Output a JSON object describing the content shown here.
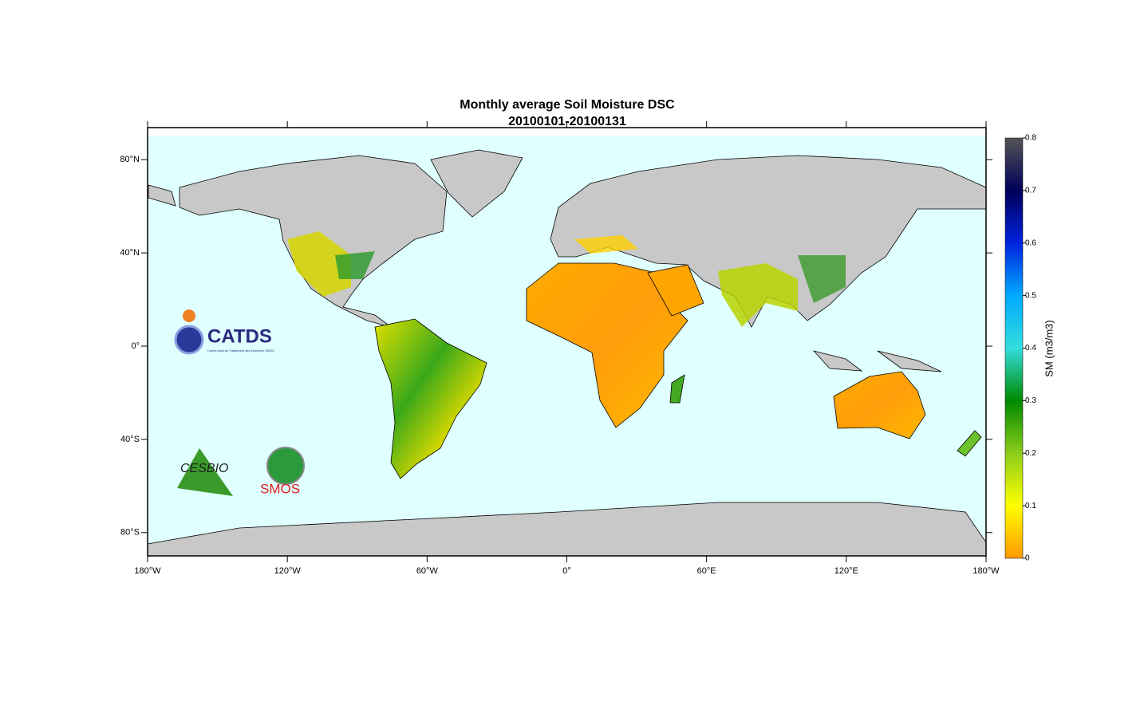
{
  "chart_data": {
    "type": "map",
    "title": "Monthly average Soil Moisture  DSC",
    "subtitle": "20100101-20100131",
    "xlim": [
      -180,
      180
    ],
    "ylim": [
      -90,
      90
    ],
    "xticks": [
      {
        "value": -180,
        "label": "180°W"
      },
      {
        "value": -120,
        "label": "120°W"
      },
      {
        "value": -60,
        "label": "60°W"
      },
      {
        "value": 0,
        "label": "0°"
      },
      {
        "value": 60,
        "label": "60°E"
      },
      {
        "value": 120,
        "label": "120°E"
      },
      {
        "value": 180,
        "label": "180°W"
      }
    ],
    "yticks": [
      {
        "value": -80,
        "label": "80°S"
      },
      {
        "value": -40,
        "label": "40°S"
      },
      {
        "value": 0,
        "label": "0°"
      },
      {
        "value": 40,
        "label": "40°N"
      },
      {
        "value": 80,
        "label": "80°N"
      }
    ],
    "colorbar": {
      "label": "SM (m3/m3)",
      "lim": [
        0,
        0.8
      ],
      "ticks": [
        0,
        0.1,
        0.2,
        0.3,
        0.4,
        0.5,
        0.6,
        0.7,
        0.8
      ],
      "colormap": [
        "#ff9900",
        "#ffff00",
        "#8ccc1a",
        "#008a00",
        "#33dddd",
        "#00aaff",
        "#0022dd",
        "#00005a",
        "#555555"
      ]
    },
    "logos": {
      "catds": "CATDS",
      "catds_sub": "Centre Aval de Traitement des Données SMOS",
      "cesbio": "CESBIO",
      "smos": "SMOS"
    }
  }
}
